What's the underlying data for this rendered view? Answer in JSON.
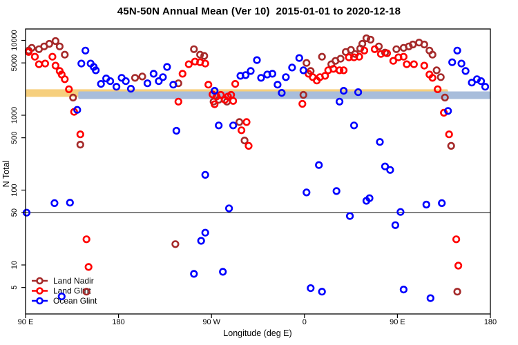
{
  "title": "45N-50N Annual Mean (Ver 10)  2015-01-01 to 2020-12-18",
  "chart_data": {
    "type": "scatter",
    "title": "45N-50N Annual Mean (Ver 10)  2015-01-01 to 2020-12-18",
    "xlabel": "Longitude (deg E)",
    "ylabel": "N Total",
    "x_axis": {
      "note": "longitude axis wraps: spans 450 degrees starting at 90E",
      "min": 90,
      "max": 540,
      "ticks": [
        90,
        180,
        270,
        360,
        450,
        540
      ],
      "tick_labels": [
        "90 E",
        "180",
        "90 W",
        "0",
        "90 E",
        "180"
      ]
    },
    "y_axis": {
      "scale": "log",
      "min": 2.2,
      "max": 14000,
      "ticks": [
        10000,
        5000,
        1000,
        500,
        100,
        50,
        10,
        5
      ],
      "tick_labels": [
        "10000",
        "5000",
        "1000",
        "500",
        "100",
        "50",
        "10",
        "5"
      ]
    },
    "grid": "off",
    "legend_position": "bottom-left",
    "reference_line": {
      "y": 50,
      "color": "#000000"
    },
    "bands": [
      {
        "name": "land-reference-band",
        "color": "#F6CF7D",
        "x_start": 90,
        "x_end": 499,
        "y_center": 1975
      },
      {
        "name": "ocean-reference-band",
        "color": "#A8BDDB",
        "x_start": 141,
        "x_end": 540,
        "y_center": 1850
      }
    ],
    "series": [
      {
        "name": "Land Nadir",
        "color": "#A52A2A",
        "points": [
          [
            93,
            7300
          ],
          [
            96,
            7940
          ],
          [
            103,
            7620
          ],
          [
            108,
            8300
          ],
          [
            113,
            9000
          ],
          [
            119,
            9800
          ],
          [
            123,
            8300
          ],
          [
            128,
            6450
          ],
          [
            136,
            1720
          ],
          [
            143,
            405
          ],
          [
            149,
            4.4
          ],
          [
            196,
            3160
          ],
          [
            203,
            3290
          ],
          [
            235,
            19
          ],
          [
            238,
            2670
          ],
          [
            253,
            7620
          ],
          [
            259,
            6450
          ],
          [
            263,
            6200
          ],
          [
            272,
            1520
          ],
          [
            277,
            1610
          ],
          [
            285,
            1520
          ],
          [
            297,
            810
          ],
          [
            302,
            460
          ],
          [
            359,
            1870
          ],
          [
            362,
            5000
          ],
          [
            366,
            3900
          ],
          [
            377,
            6050
          ],
          [
            386,
            4800
          ],
          [
            390,
            5330
          ],
          [
            395,
            5690
          ],
          [
            400,
            7000
          ],
          [
            405,
            7460
          ],
          [
            409,
            6580
          ],
          [
            414,
            7780
          ],
          [
            416,
            8990
          ],
          [
            420,
            10650
          ],
          [
            424,
            10220
          ],
          [
            432,
            8300
          ],
          [
            438,
            6870
          ],
          [
            449,
            7620
          ],
          [
            456,
            7940
          ],
          [
            461,
            8300
          ],
          [
            465,
            8810
          ],
          [
            471,
            9350
          ],
          [
            476,
            8810
          ],
          [
            481,
            7300
          ],
          [
            484,
            6450
          ],
          [
            488,
            3980
          ],
          [
            492,
            3230
          ],
          [
            496,
            1720
          ],
          [
            502,
            390
          ],
          [
            508,
            4.4
          ]
        ]
      },
      {
        "name": "Land Glint",
        "color": "#FF0000",
        "points": [
          [
            93,
            7000
          ],
          [
            99,
            6050
          ],
          [
            103,
            4800
          ],
          [
            109,
            4900
          ],
          [
            116,
            6050
          ],
          [
            119,
            4600
          ],
          [
            123,
            3900
          ],
          [
            125,
            3500
          ],
          [
            128,
            3030
          ],
          [
            132,
            2220
          ],
          [
            137,
            1110
          ],
          [
            143,
            556
          ],
          [
            149,
            22
          ],
          [
            151,
            9.4
          ],
          [
            238,
            1520
          ],
          [
            242,
            3580
          ],
          [
            248,
            4800
          ],
          [
            254,
            5210
          ],
          [
            259,
            5100
          ],
          [
            264,
            4900
          ],
          [
            267,
            2560
          ],
          [
            271,
            1900
          ],
          [
            273,
            1400
          ],
          [
            275,
            1780
          ],
          [
            279,
            1870
          ],
          [
            283,
            1610
          ],
          [
            286,
            1780
          ],
          [
            289,
            1870
          ],
          [
            291,
            1550
          ],
          [
            293,
            2620
          ],
          [
            299,
            630
          ],
          [
            304,
            810
          ],
          [
            306,
            390
          ],
          [
            358,
            1420
          ],
          [
            364,
            3580
          ],
          [
            368,
            3230
          ],
          [
            372,
            2910
          ],
          [
            375,
            3230
          ],
          [
            380,
            3360
          ],
          [
            383,
            3980
          ],
          [
            388,
            4160
          ],
          [
            394,
            3980
          ],
          [
            398,
            3980
          ],
          [
            403,
            5930
          ],
          [
            408,
            5930
          ],
          [
            413,
            6050
          ],
          [
            418,
            7300
          ],
          [
            428,
            7620
          ],
          [
            434,
            6580
          ],
          [
            440,
            6720
          ],
          [
            446,
            5330
          ],
          [
            451,
            5930
          ],
          [
            456,
            6050
          ],
          [
            459,
            4800
          ],
          [
            466,
            4800
          ],
          [
            476,
            4600
          ],
          [
            481,
            3500
          ],
          [
            484,
            3160
          ],
          [
            489,
            2220
          ],
          [
            495,
            1080
          ],
          [
            500,
            555
          ],
          [
            507,
            22
          ],
          [
            509,
            9.8
          ]
        ]
      },
      {
        "name": "Ocean Glint",
        "color": "#0000FF",
        "points": [
          [
            91,
            50
          ],
          [
            118,
            67
          ],
          [
            125,
            3.8
          ],
          [
            133,
            68
          ],
          [
            140,
            1180
          ],
          [
            144,
            4900
          ],
          [
            148,
            7300
          ],
          [
            153,
            4900
          ],
          [
            156,
            4420
          ],
          [
            158,
            3980
          ],
          [
            163,
            2620
          ],
          [
            168,
            3100
          ],
          [
            172,
            2850
          ],
          [
            178,
            2400
          ],
          [
            183,
            3160
          ],
          [
            187,
            2850
          ],
          [
            192,
            2260
          ],
          [
            208,
            2670
          ],
          [
            214,
            3580
          ],
          [
            219,
            2850
          ],
          [
            223,
            3230
          ],
          [
            227,
            4420
          ],
          [
            233,
            2560
          ],
          [
            236,
            620
          ],
          [
            253,
            7.6
          ],
          [
            260,
            21
          ],
          [
            264,
            27
          ],
          [
            264,
            160
          ],
          [
            273,
            2120
          ],
          [
            277,
            730
          ],
          [
            281,
            8.1
          ],
          [
            287,
            57
          ],
          [
            291,
            730
          ],
          [
            298,
            3360
          ],
          [
            303,
            3430
          ],
          [
            308,
            3900
          ],
          [
            314,
            5450
          ],
          [
            318,
            3160
          ],
          [
            324,
            3500
          ],
          [
            329,
            3580
          ],
          [
            334,
            2560
          ],
          [
            338,
            1990
          ],
          [
            342,
            3230
          ],
          [
            348,
            4330
          ],
          [
            355,
            5810
          ],
          [
            359,
            3980
          ],
          [
            362,
            93
          ],
          [
            366,
            4.9
          ],
          [
            374,
            216
          ],
          [
            377,
            4.4
          ],
          [
            391,
            97
          ],
          [
            394,
            1520
          ],
          [
            398,
            2120
          ],
          [
            404,
            45
          ],
          [
            408,
            730
          ],
          [
            412,
            2030
          ],
          [
            420,
            72
          ],
          [
            423,
            78
          ],
          [
            433,
            440
          ],
          [
            438,
            207
          ],
          [
            443,
            186
          ],
          [
            448,
            34
          ],
          [
            453,
            51
          ],
          [
            456,
            4.7
          ],
          [
            478,
            64
          ],
          [
            482,
            3.6
          ],
          [
            493,
            67
          ],
          [
            499,
            1140
          ],
          [
            503,
            5100
          ],
          [
            508,
            7300
          ],
          [
            512,
            4900
          ],
          [
            516,
            3900
          ],
          [
            522,
            2730
          ],
          [
            527,
            3030
          ],
          [
            531,
            2850
          ],
          [
            535,
            2400
          ]
        ]
      }
    ]
  }
}
